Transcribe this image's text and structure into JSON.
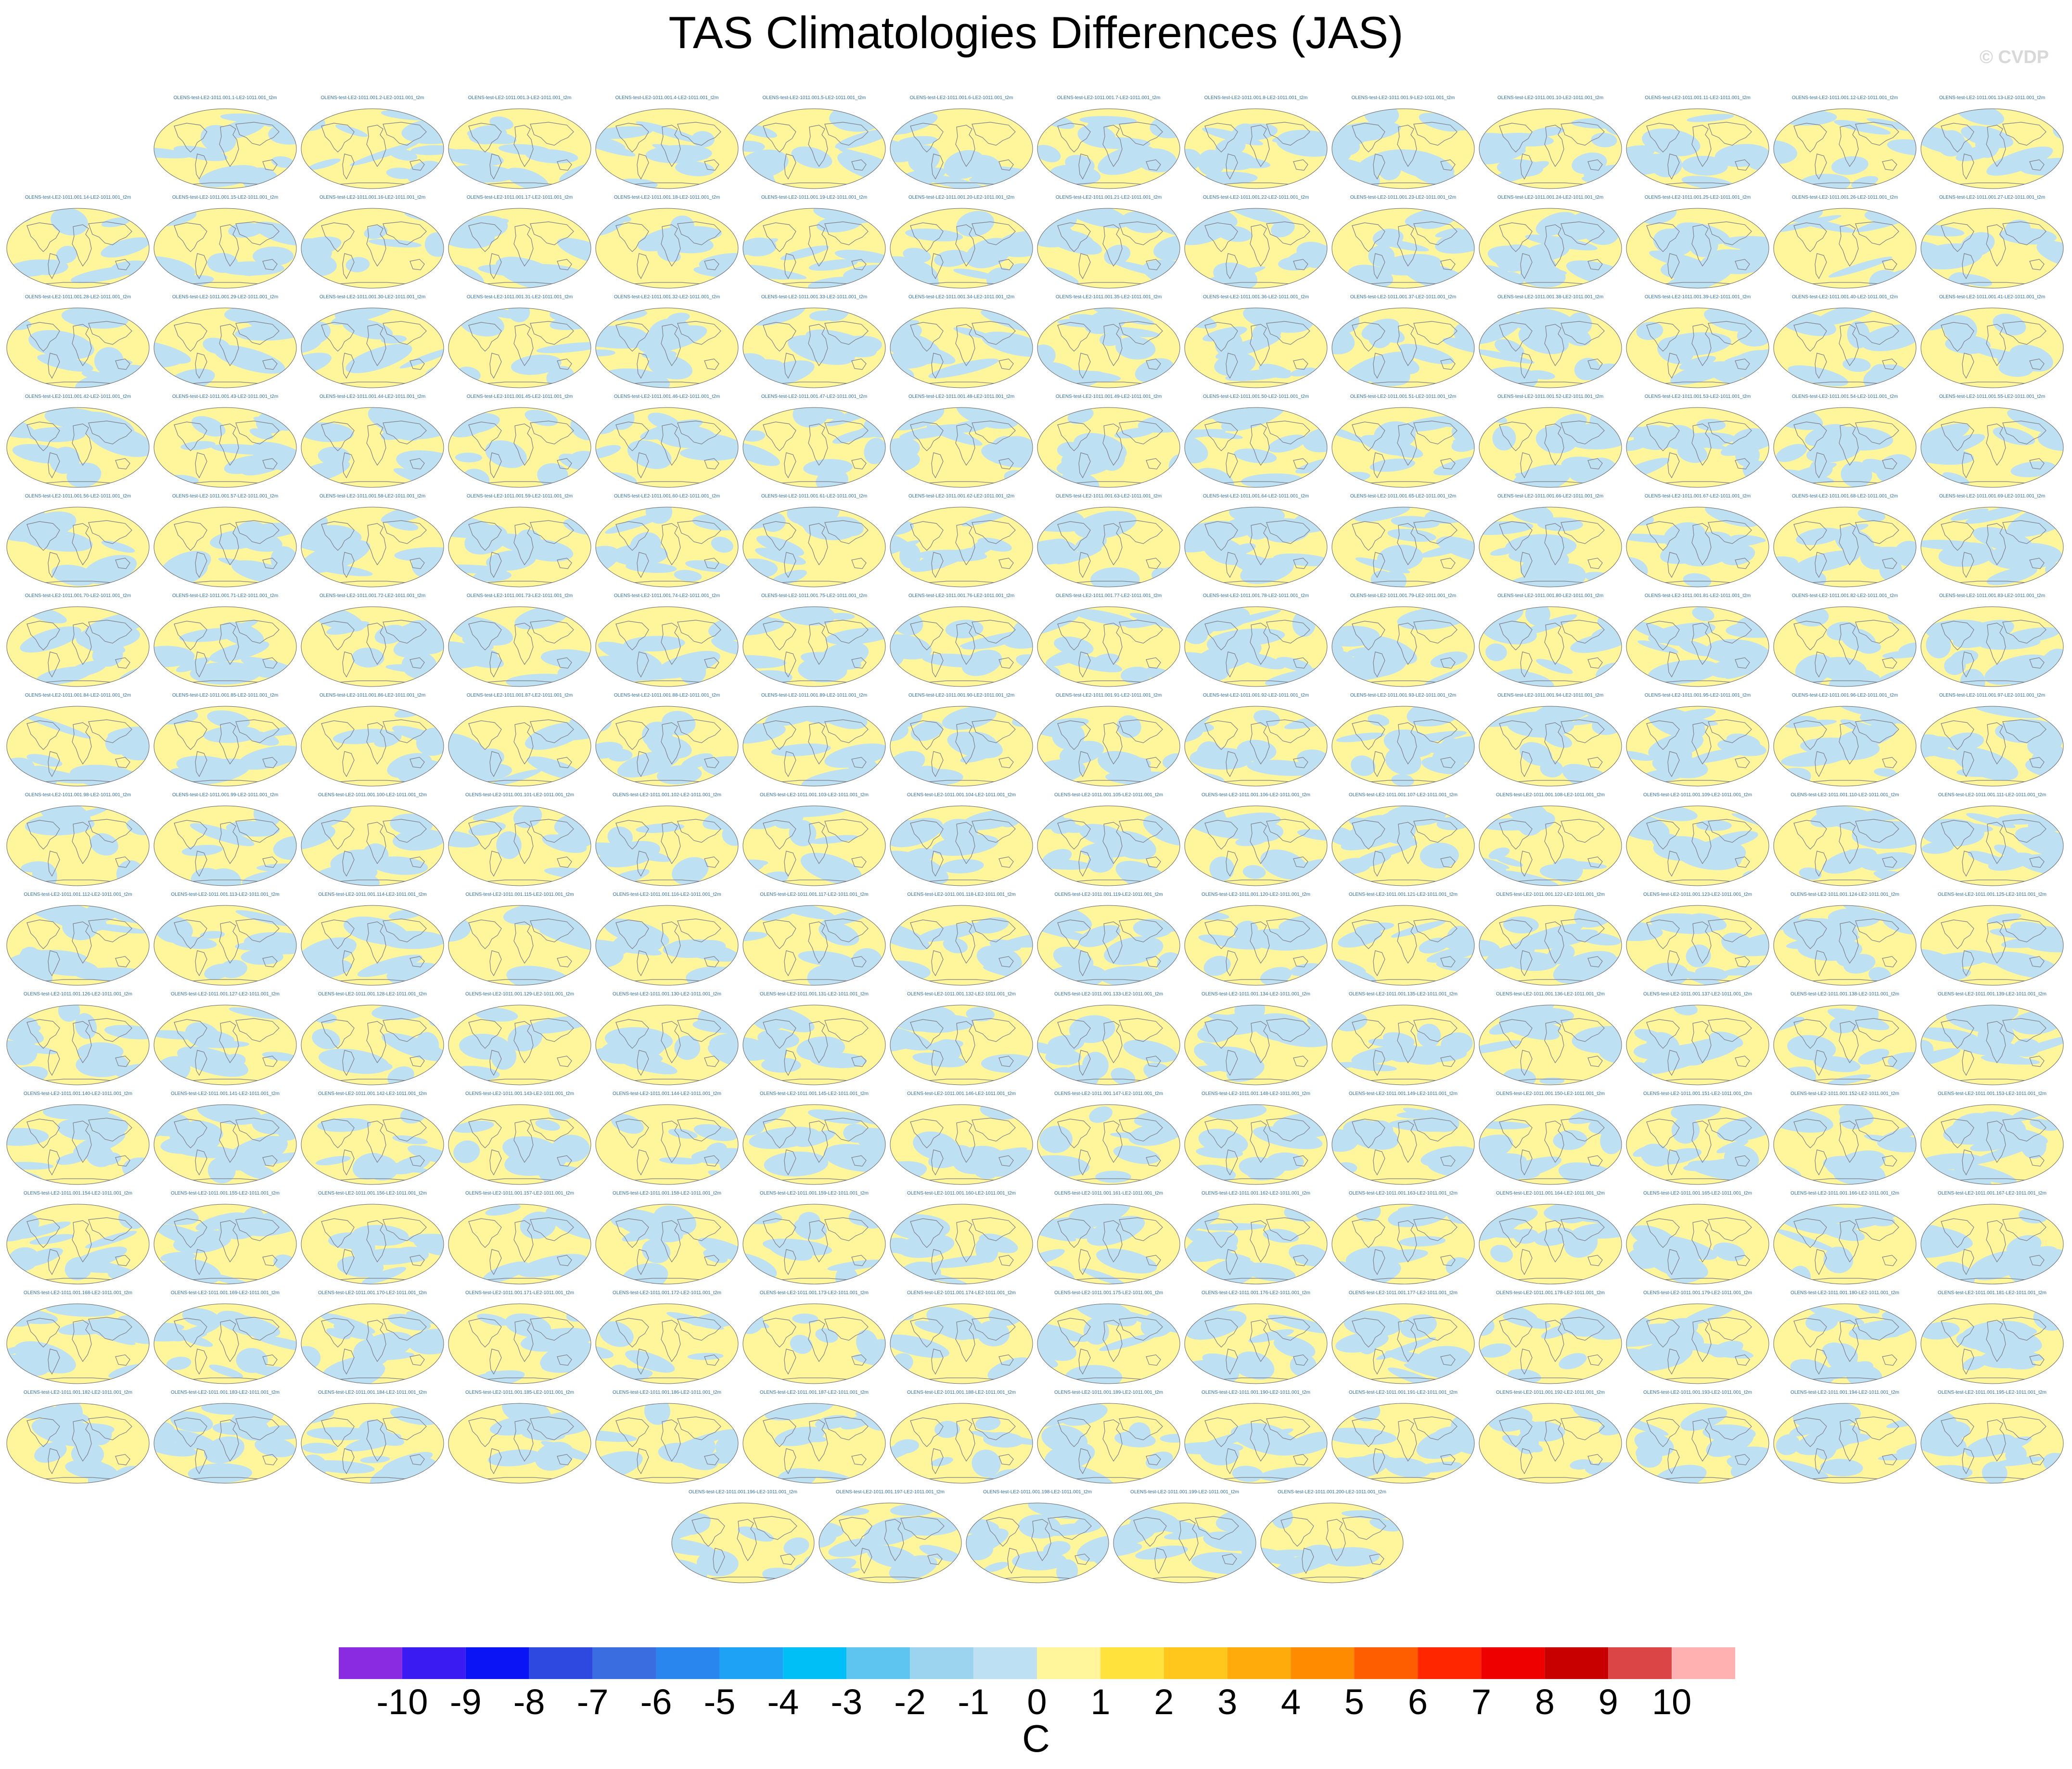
{
  "title": "TAS Climatologies Differences (JAS)",
  "watermark": "© CVDP",
  "colors": {
    "negative": "#bde0f2",
    "positive": "#fff59a",
    "coast": "#7d7d8a",
    "border": "#666666",
    "label": "#2f6fa8"
  },
  "chart_data": {
    "type": "heatmap",
    "title": "TAS Climatologies Differences (JAS)",
    "panel_count": 200,
    "panel_label_template": "OLENS-test-LE2-1011.001.{n}-LE2-1011.001_t2m",
    "map_projection": "robinson",
    "dominant_levels": [
      -1,
      0,
      1
    ],
    "colorbar": {
      "units": "C",
      "tick_labels": [
        "-10",
        "-9",
        "-8",
        "-7",
        "-6",
        "-5",
        "-4",
        "-3",
        "-2",
        "-1",
        "0",
        "1",
        "2",
        "3",
        "4",
        "5",
        "6",
        "7",
        "8",
        "9",
        "10"
      ],
      "colors": [
        "#8a2be2",
        "#3a1cf2",
        "#0b14f5",
        "#2d49e0",
        "#3a6ee0",
        "#2a86ef",
        "#1ea2f5",
        "#00bff7",
        "#5ec4f0",
        "#9cd3ee",
        "#bde0f2",
        "#fff59a",
        "#ffe23c",
        "#ffc61c",
        "#ffab0c",
        "#ff8c00",
        "#ff5e00",
        "#ff2600",
        "#ef0000",
        "#c80000",
        "#dc4545",
        "#ffb0b0"
      ]
    }
  }
}
